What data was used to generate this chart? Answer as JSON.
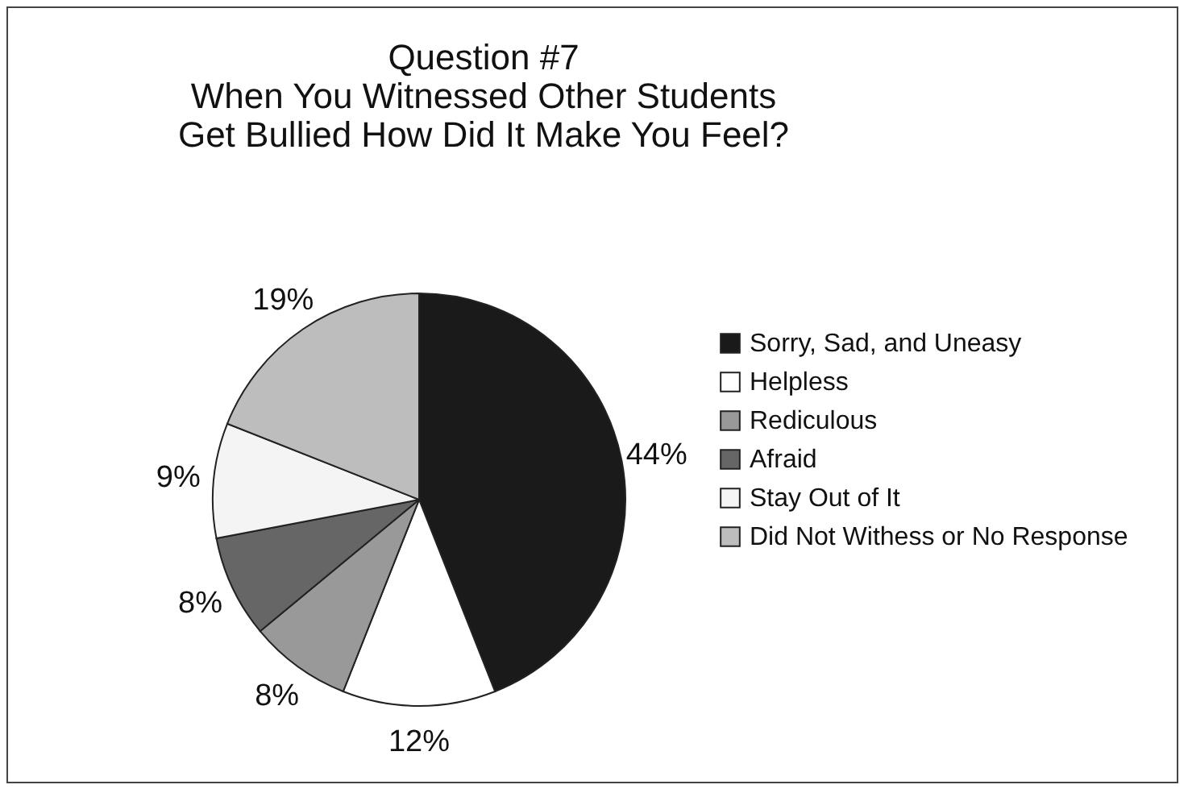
{
  "chart_data": {
    "type": "pie",
    "title": "Question #7\nWhen You Witnessed Other Students\nGet Bullied How Did It Make You Feel?",
    "categories": [
      "Sorry, Sad, and Uneasy",
      "Helpless",
      "Rediculous",
      "Afraid",
      "Stay Out of It",
      "Did Not Withess or No Response"
    ],
    "values": [
      44,
      12,
      8,
      8,
      9,
      19
    ],
    "value_labels": [
      "44%",
      "12%",
      "8%",
      "8%",
      "9%",
      "19%"
    ],
    "colors": [
      "#1a1a1a",
      "#ffffff",
      "#999999",
      "#666666",
      "#f4f4f4",
      "#bdbdbd"
    ],
    "legend": "right"
  }
}
